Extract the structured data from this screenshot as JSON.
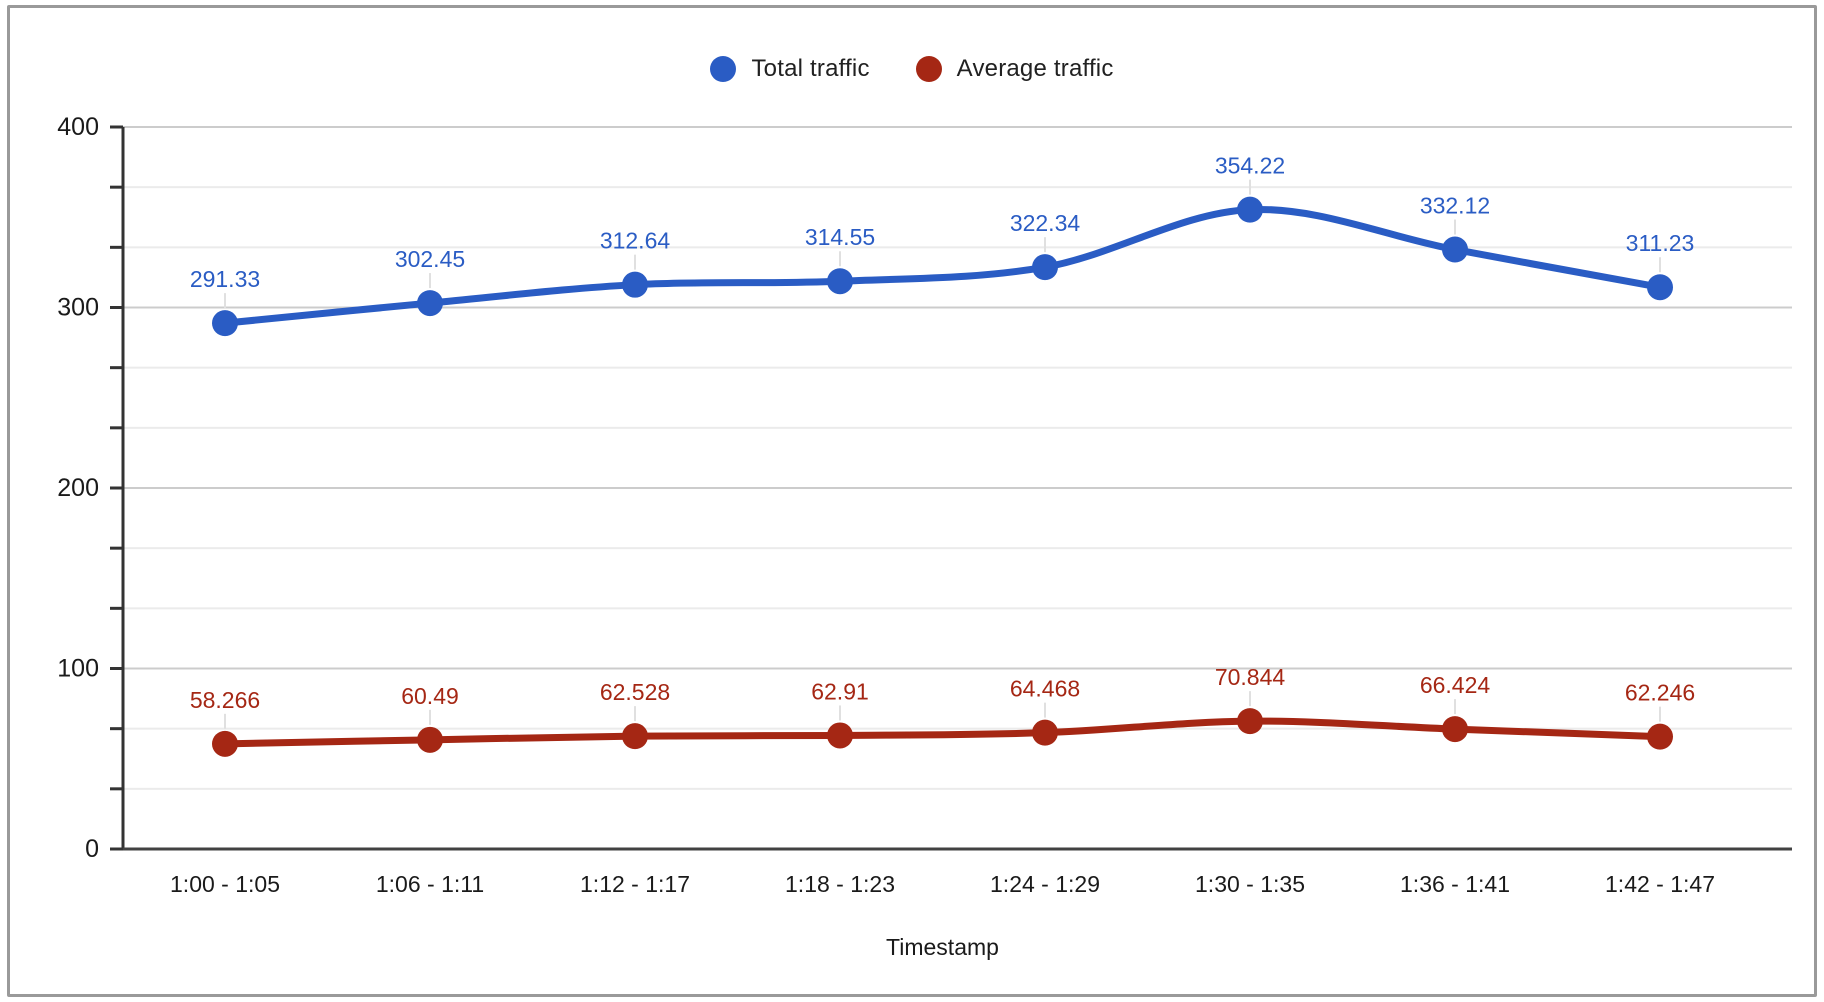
{
  "chart_data": {
    "type": "line",
    "smooth": true,
    "grid": true,
    "legend_position": "top",
    "xlabel": "Timestamp",
    "ylabel": "",
    "ylim": [
      0,
      400
    ],
    "yticks": [
      0,
      100,
      200,
      300,
      400
    ],
    "ytick_labels": [
      "0",
      "100",
      "200",
      "300",
      "400"
    ],
    "minor_gridlines_per_major": 3,
    "categories": [
      "1:00 - 1:05",
      "1:06 - 1:11",
      "1:12 - 1:17",
      "1:18 - 1:23",
      "1:24 - 1:29",
      "1:30 - 1:35",
      "1:36 - 1:41",
      "1:42 - 1:47"
    ],
    "series": [
      {
        "name": "Total traffic",
        "color": "#2a5cc4",
        "values": [
          291.33,
          302.45,
          312.64,
          314.55,
          322.34,
          354.22,
          332.12,
          311.23
        ],
        "labels": [
          "291.33",
          "302.45",
          "312.64",
          "314.55",
          "322.34",
          "354.22",
          "332.12",
          "311.23"
        ]
      },
      {
        "name": "Average traffic",
        "color": "#a52714",
        "values": [
          58.266,
          60.49,
          62.528,
          62.91,
          64.468,
          70.844,
          66.424,
          62.246
        ],
        "labels": [
          "58.266",
          "60.49",
          "62.528",
          "62.91",
          "64.468",
          "70.844",
          "66.424",
          "62.246"
        ]
      }
    ]
  },
  "legend": {
    "items": [
      {
        "label": "Total traffic",
        "color": "#2a5cc4"
      },
      {
        "label": "Average traffic",
        "color": "#a52714"
      }
    ]
  },
  "axis": {
    "title": "Timestamp",
    "label_color": "#1a1a1a",
    "axis_line_color": "#333333",
    "major_grid_color": "#cccccc",
    "minor_grid_color": "#ebebeb",
    "leader_line_color": "#e0e0e0"
  }
}
